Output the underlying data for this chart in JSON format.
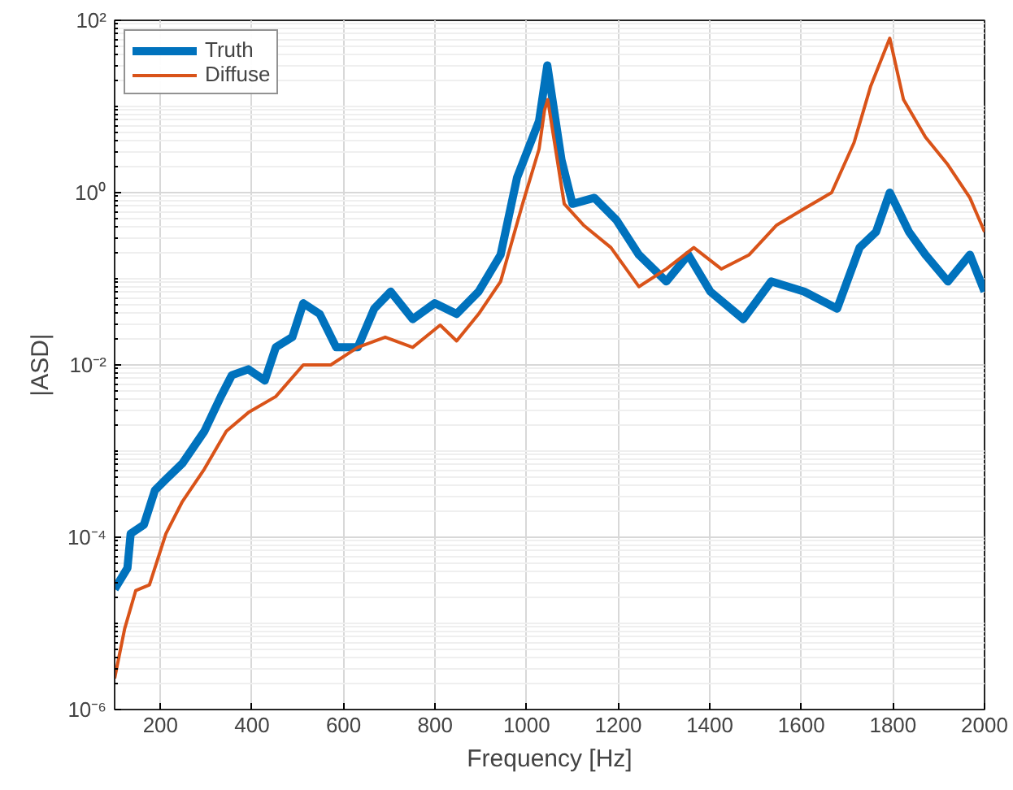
{
  "chart_data": {
    "type": "line",
    "xlabel": "Frequency [Hz]",
    "ylabel": "|ASD|",
    "log": "y",
    "grid": true,
    "legend": "top left",
    "line_style": "solid",
    "marker": "none",
    "xlim": [
      100,
      2000
    ],
    "xticks": [
      200,
      400,
      600,
      800,
      1000,
      1200,
      1400,
      1600,
      1800,
      2000
    ],
    "ylim": [
      1e-06,
      100
    ],
    "yticks": [
      {
        "value": 1e-06,
        "label": "10⁻⁶"
      },
      {
        "value": 0.0001,
        "label": "10⁻⁴"
      },
      {
        "value": 0.01,
        "label": "10⁻²"
      },
      {
        "value": 1,
        "label": "10⁰"
      },
      {
        "value": 100,
        "label": "10²"
      }
    ],
    "series": [
      {
        "name": "Truth",
        "color": "#0072bd",
        "x": [
          100,
          128,
          135,
          164,
          188,
          212,
          248,
          296,
          332,
          356,
          392,
          428,
          452,
          488,
          512,
          548,
          584,
          631,
          667,
          703,
          751,
          799,
          847,
          895,
          943,
          979,
          1003,
          1027,
          1045,
          1076,
          1100,
          1148,
          1196,
          1245,
          1305,
          1353,
          1401,
          1473,
          1534,
          1606,
          1678,
          1727,
          1763,
          1793,
          1835,
          1871,
          1920,
          1968,
          2000
        ],
        "values": [
          2.5e-05,
          4.4e-05,
          0.00011,
          0.00014,
          0.00035,
          0.00047,
          0.00072,
          0.0017,
          0.0043,
          0.0076,
          0.0089,
          0.0066,
          0.016,
          0.021,
          0.052,
          0.039,
          0.016,
          0.016,
          0.045,
          0.071,
          0.034,
          0.052,
          0.039,
          0.071,
          0.19,
          1.5,
          3.2,
          6.8,
          30,
          2.4,
          0.74,
          0.87,
          0.48,
          0.19,
          0.093,
          0.19,
          0.071,
          0.034,
          0.093,
          0.071,
          0.045,
          0.23,
          0.35,
          1.0,
          0.35,
          0.19,
          0.093,
          0.19,
          0.071
        ]
      },
      {
        "name": "Diffuse",
        "color": "#d95319",
        "x": [
          100,
          122,
          146,
          176,
          212,
          248,
          296,
          344,
          392,
          452,
          512,
          572,
          631,
          691,
          751,
          811,
          847,
          895,
          943,
          991,
          1027,
          1039,
          1046,
          1082,
          1124,
          1184,
          1245,
          1305,
          1365,
          1425,
          1486,
          1546,
          1606,
          1666,
          1715,
          1751,
          1793,
          1823,
          1871,
          1920,
          1968,
          2000
        ],
        "values": [
          2.3e-06,
          8.7e-06,
          2.4e-05,
          2.8e-05,
          0.00011,
          0.00026,
          0.00062,
          0.0017,
          0.0028,
          0.0043,
          0.01,
          0.01,
          0.016,
          0.021,
          0.016,
          0.029,
          0.019,
          0.039,
          0.093,
          0.74,
          3.2,
          9.1,
          12,
          0.74,
          0.42,
          0.23,
          0.081,
          0.13,
          0.23,
          0.13,
          0.19,
          0.42,
          0.65,
          1.0,
          3.8,
          17,
          62,
          12,
          4.4,
          2.1,
          0.87,
          0.35
        ]
      }
    ]
  }
}
